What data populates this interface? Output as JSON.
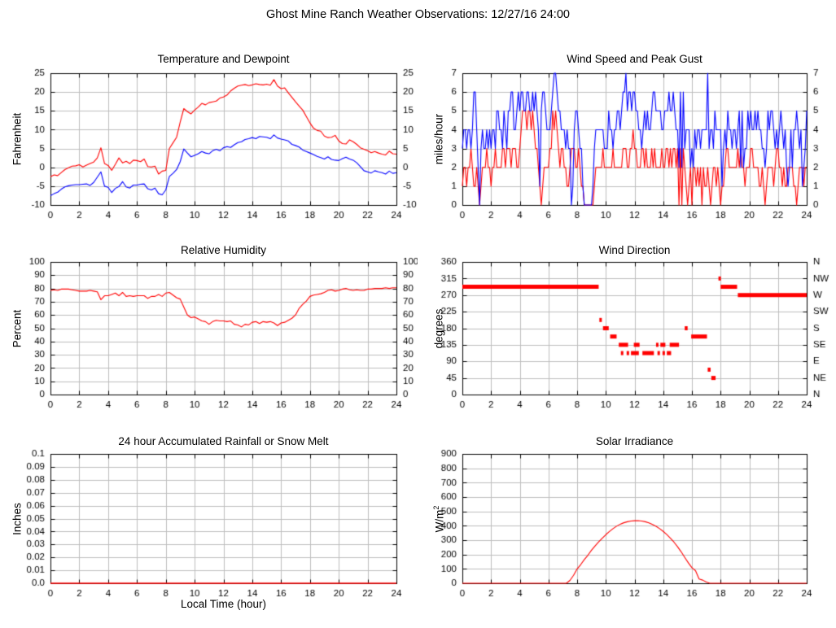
{
  "page_title": "Ghost Mine Ranch Weather Observations: 12/27/16 24:00",
  "colors": {
    "grid": "#bdbdbd",
    "border": "#000000",
    "red": "#ff0000",
    "blue": "#0000ff"
  },
  "x_axis": {
    "label": "Local Time (hour)",
    "min": 0,
    "max": 24,
    "tick_labels": [
      "0",
      "2",
      "4",
      "6",
      "8",
      "10",
      "12",
      "14",
      "16",
      "18",
      "20",
      "22",
      "24"
    ]
  },
  "chart_data": [
    {
      "type": "line",
      "title": "Temperature and Dewpoint",
      "ylabel": "Fahrenheit",
      "ymin": -10,
      "ymax": 25,
      "ytick_labels": [
        "-10",
        "-5",
        "0",
        "5",
        "10",
        "15",
        "20",
        "25"
      ],
      "right_tick_labels": "mirror",
      "xlabel": "",
      "grid": true,
      "legend": "none",
      "series": [
        {
          "name": "temperature",
          "color": "#ff0000",
          "x_step": 0.25,
          "values": [
            -2.5,
            -2.0,
            -2.2,
            -1.4,
            -0.6,
            -0.1,
            0.3,
            0.4,
            0.7,
            0.1,
            0.6,
            1.0,
            1.4,
            2.5,
            5.2,
            1.0,
            0.5,
            -0.8,
            0.8,
            2.5,
            1.2,
            1.6,
            1.0,
            1.9,
            1.8,
            1.5,
            2.2,
            0.2,
            0.1,
            0.3,
            -1.8,
            -1.0,
            -0.8,
            5.0,
            6.5,
            8.0,
            12.0,
            15.6,
            14.8,
            14.2,
            15.2,
            16.0,
            17.0,
            16.6,
            17.2,
            17.4,
            17.6,
            18.4,
            18.7,
            19.2,
            20.3,
            21.0,
            21.6,
            21.8,
            22.0,
            21.7,
            21.9,
            22.2,
            22.0,
            21.9,
            22.1,
            21.8,
            23.3,
            21.6,
            20.9,
            21.1,
            19.8,
            18.6,
            17.4,
            16.3,
            15.2,
            13.5,
            11.8,
            10.4,
            9.8,
            9.6,
            8.3,
            7.9,
            8.0,
            8.5,
            7.0,
            6.3,
            6.2,
            7.3,
            6.8,
            6.1,
            5.2,
            4.8,
            4.4,
            3.9,
            4.2,
            3.8,
            3.5,
            3.3,
            4.3,
            3.6,
            3.5
          ]
        },
        {
          "name": "dewpoint",
          "color": "#0000ff",
          "x_step": 0.25,
          "values": [
            -7.5,
            -7.0,
            -6.6,
            -5.8,
            -5.2,
            -4.9,
            -4.7,
            -4.6,
            -4.6,
            -4.5,
            -4.4,
            -4.8,
            -4.0,
            -2.6,
            -1.2,
            -5.0,
            -5.3,
            -6.7,
            -5.6,
            -5.1,
            -3.8,
            -5.2,
            -5.5,
            -4.7,
            -4.7,
            -4.5,
            -4.4,
            -5.7,
            -6.0,
            -5.5,
            -7.0,
            -7.3,
            -6.0,
            -2.4,
            -1.6,
            -0.6,
            1.5,
            4.9,
            3.8,
            2.8,
            3.2,
            3.6,
            4.2,
            3.8,
            3.6,
            4.4,
            4.8,
            4.4,
            5.2,
            5.5,
            5.3,
            6.0,
            6.6,
            6.8,
            7.4,
            7.6,
            7.9,
            7.6,
            8.2,
            8.1,
            8.0,
            7.6,
            8.6,
            7.8,
            7.5,
            7.3,
            7.0,
            6.1,
            5.8,
            5.4,
            4.6,
            4.2,
            3.8,
            3.4,
            2.9,
            2.6,
            2.2,
            2.8,
            2.1,
            1.9,
            1.8,
            2.3,
            2.7,
            2.2,
            1.9,
            1.2,
            0.2,
            -0.9,
            -1.2,
            -1.5,
            -0.9,
            -1.2,
            -1.4,
            -1.8,
            -1.0,
            -1.6,
            -1.4
          ]
        }
      ]
    },
    {
      "type": "line",
      "title": "Wind Speed and Peak Gust",
      "ylabel": "miles/hour",
      "ymin": 0,
      "ymax": 7,
      "ytick_labels": [
        "0",
        "1",
        "2",
        "3",
        "4",
        "5",
        "6",
        "7"
      ],
      "right_tick_labels": "mirror",
      "xlabel": "",
      "grid": true,
      "legend": "none",
      "series": [
        {
          "name": "wind-speed",
          "color": "#ff0000",
          "x_step": 0.1,
          "digits": "1221223211210122232212232222332333233322345554554543321012222335454323322112333223211000000012222232222223222222333223343322233232223232222322332323323030321012022121202112101221210112332222223232212223322221121012222123322121122221101222122"
        },
        {
          "name": "peak-gust",
          "color": "#0000ff",
          "x_step": 0.1,
          "digits": "3443443466420343343434435544354355664456566556655656541566544456776554443433014554331000000134444443335443445545667566566554434545445665555445556556544262634442324344344447344354444134354434434525233545445454433235455434345434212424454341235"
        }
      ]
    },
    {
      "type": "line",
      "title": "Relative Humidity",
      "ylabel": "Percent",
      "ymin": 0,
      "ymax": 100,
      "ytick_labels": [
        "0",
        "10",
        "20",
        "30",
        "40",
        "50",
        "60",
        "70",
        "80",
        "90",
        "100"
      ],
      "right_tick_labels": "mirror",
      "xlabel": "",
      "grid": true,
      "legend": "none",
      "series": [
        {
          "name": "relative-humidity",
          "color": "#ff0000",
          "x_step": 0.25,
          "values": [
            78.5,
            79,
            78.5,
            79.5,
            79.5,
            79.5,
            79,
            78.5,
            78,
            78,
            78,
            78.5,
            78,
            77.5,
            71.5,
            74.5,
            74.5,
            75.5,
            76.5,
            74.5,
            77,
            74,
            74.5,
            74,
            74.5,
            74.5,
            74.5,
            72.5,
            74,
            74,
            75.5,
            74,
            76.5,
            77,
            75,
            73,
            72,
            66,
            60,
            58,
            58.5,
            57,
            55.5,
            55,
            53,
            55,
            56,
            55.5,
            55.5,
            55,
            55.5,
            53,
            52.5,
            51,
            53,
            52.5,
            54.5,
            55,
            53.5,
            55,
            54.5,
            55,
            54,
            52,
            54,
            54.5,
            56,
            57.5,
            60,
            65,
            68,
            70.5,
            74,
            75,
            75.5,
            76,
            77,
            78.5,
            79,
            78,
            78.5,
            79.5,
            80,
            79,
            78.5,
            79,
            78.5,
            78.5,
            79.5,
            79.5,
            80,
            80,
            80,
            80.5,
            80,
            80.5,
            80.5
          ]
        }
      ]
    },
    {
      "type": "scatter",
      "title": "Wind Direction",
      "ylabel": "degrees",
      "ymin": 0,
      "ymax": 360,
      "ytick_labels": [
        "0",
        "45",
        "90",
        "135",
        "180",
        "225",
        "270",
        "315",
        "360"
      ],
      "right_tick_labels": [
        "N",
        "NE",
        "E",
        "SE",
        "S",
        "SW",
        "W",
        "NW",
        "N"
      ],
      "xlabel": "",
      "grid": true,
      "legend": "none",
      "series": [
        {
          "name": "wind-direction",
          "color": "#ff0000",
          "type": "segments",
          "segments": [
            [
              0,
              9.5,
              292.5
            ],
            [
              9.55,
              9.7,
              202.5
            ],
            [
              9.8,
              10.2,
              180
            ],
            [
              10.3,
              10.75,
              157.5
            ],
            [
              10.9,
              11.55,
              135
            ],
            [
              11.05,
              11.15,
              112.5
            ],
            [
              11.45,
              11.6,
              112.5
            ],
            [
              11.75,
              12.3,
              112.5
            ],
            [
              11.95,
              12.35,
              135
            ],
            [
              12.55,
              13.35,
              112.5
            ],
            [
              13.5,
              13.65,
              135
            ],
            [
              13.6,
              13.75,
              112.5
            ],
            [
              13.8,
              14.15,
              135
            ],
            [
              13.95,
              14.1,
              112.5
            ],
            [
              14.25,
              14.55,
              112.5
            ],
            [
              14.45,
              15.1,
              135
            ],
            [
              15.5,
              15.7,
              180
            ],
            [
              15.95,
              17.05,
              157.5
            ],
            [
              17.1,
              17.3,
              67.5
            ],
            [
              17.35,
              17.65,
              45
            ],
            [
              17.85,
              17.95,
              315
            ],
            [
              18.0,
              19.15,
              292.5
            ],
            [
              19.2,
              24,
              270
            ]
          ]
        }
      ]
    },
    {
      "type": "line",
      "title": "24 hour Accumulated Rainfall or Snow Melt",
      "ylabel": "Inches",
      "ymin": 0,
      "ymax": 0.1,
      "ytick_labels": [
        "0.0",
        "0.01",
        "0.02",
        "0.03",
        "0.04",
        "0.05",
        "0.06",
        "0.07",
        "0.08",
        "0.09",
        "0.1"
      ],
      "right_tick_labels": null,
      "xlabel": "Local Time (hour)",
      "grid": true,
      "legend": "none",
      "series": [
        {
          "name": "rainfall",
          "color": "#ff0000",
          "type": "const",
          "value": 0.0
        }
      ]
    },
    {
      "type": "line",
      "title": "Solar Irradiance",
      "ylabel": "W/m",
      "ylabel_sup": "2",
      "ymin": 0,
      "ymax": 900,
      "ytick_labels": [
        "0",
        "100",
        "200",
        "300",
        "400",
        "500",
        "600",
        "700",
        "800",
        "900"
      ],
      "right_tick_labels": null,
      "xlabel": "",
      "grid": true,
      "legend": "none",
      "series": [
        {
          "name": "solar-irradiance",
          "color": "#ff0000",
          "x_step": 0.25,
          "values": [
            0,
            0,
            0,
            0,
            0,
            0,
            0,
            0,
            0,
            0,
            0,
            0,
            0,
            0,
            0,
            0,
            0,
            0,
            0,
            0,
            0,
            0,
            0,
            0,
            0,
            0,
            0,
            0,
            0,
            0,
            20,
            55,
            100,
            130,
            165,
            195,
            230,
            260,
            288,
            314,
            338,
            360,
            380,
            397,
            411,
            421,
            428,
            433,
            435,
            436,
            433,
            428,
            420,
            409,
            396,
            380,
            361,
            339,
            314,
            286,
            254,
            219,
            180,
            142,
            108,
            88,
            30,
            22,
            8,
            0,
            0,
            0,
            0,
            0,
            0,
            0,
            0,
            0,
            0,
            0,
            0,
            0,
            0,
            0,
            0,
            0,
            0,
            0,
            0,
            0,
            0,
            0,
            0,
            0,
            0,
            0,
            0
          ]
        }
      ]
    }
  ]
}
